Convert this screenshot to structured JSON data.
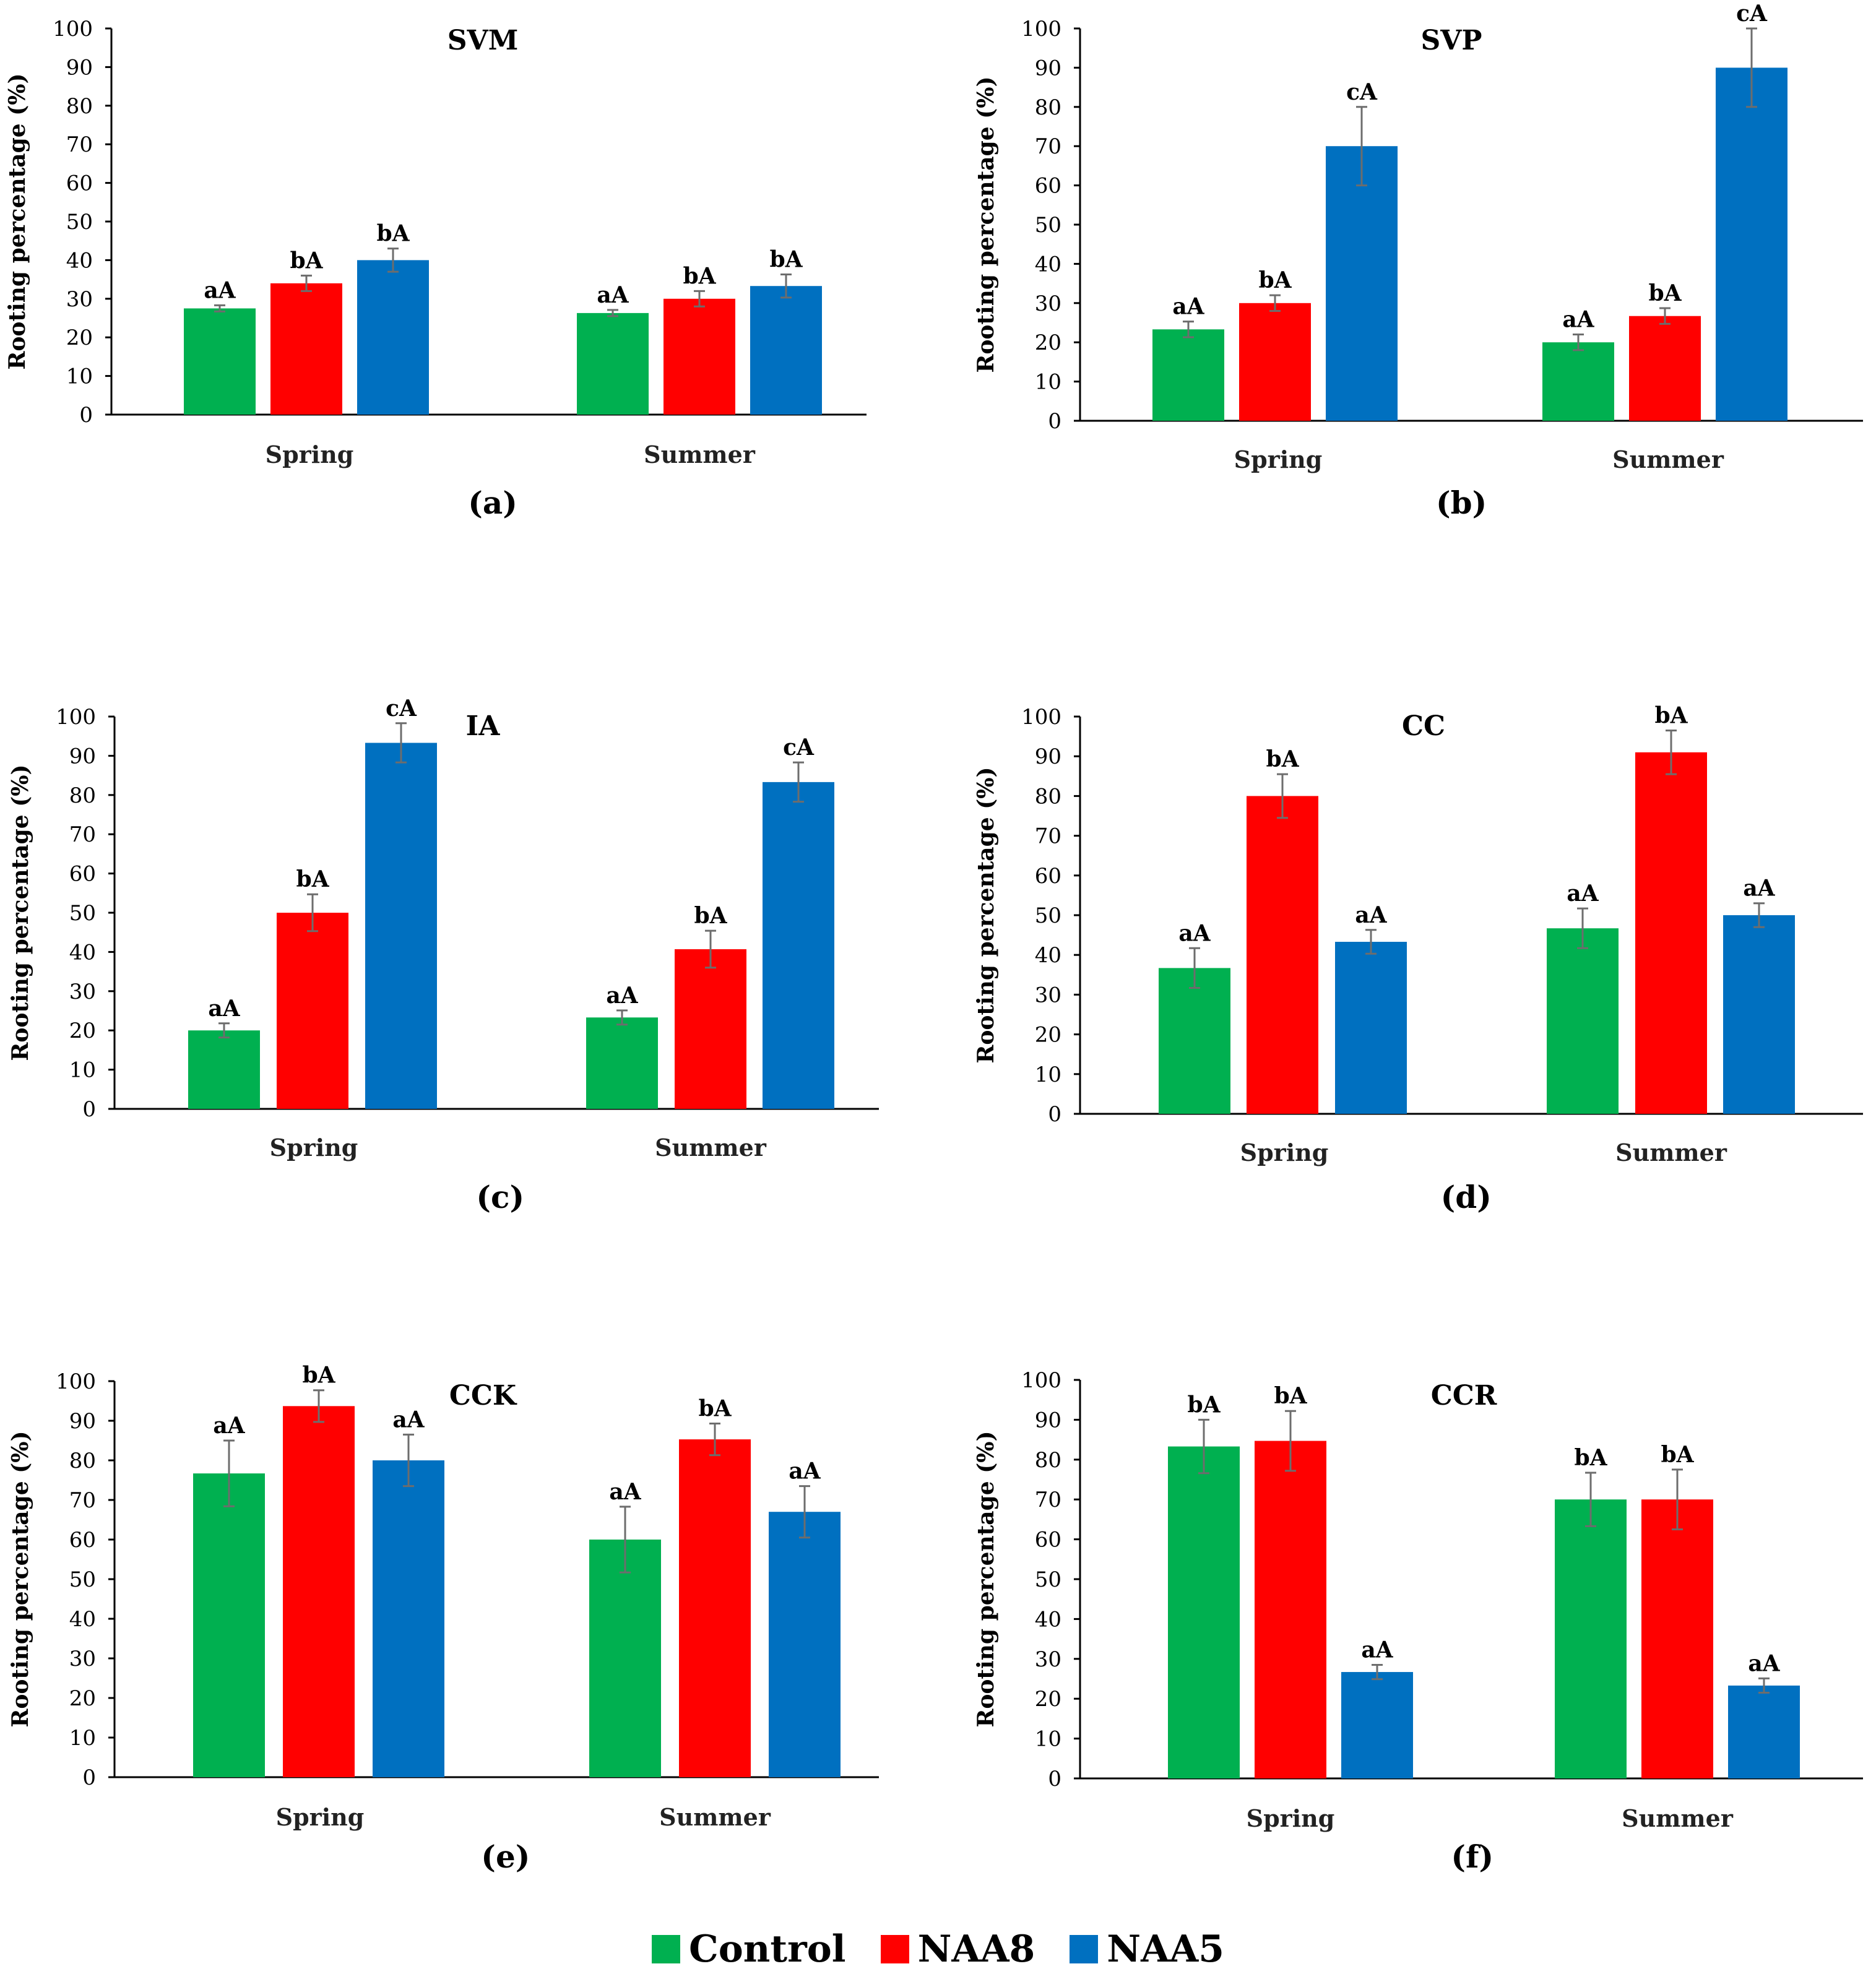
{
  "colors": {
    "Control": "#00B050",
    "NAA8": "#FF0000",
    "NAA5": "#0070C0",
    "errorbar": "#6d6d6d",
    "axis": "#000000"
  },
  "legend": [
    {
      "name": "Control",
      "color": "#00B050"
    },
    {
      "name": "NAA8",
      "color": "#FF0000"
    },
    {
      "name": "NAA5",
      "color": "#0070C0"
    }
  ],
  "chart_data": [
    {
      "type": "bar",
      "panel": "(a)",
      "title": "SVM",
      "ylabel": "Rooting percentage (%)",
      "ylim": [
        0,
        100
      ],
      "yticks": [
        0,
        10,
        20,
        30,
        40,
        50,
        60,
        70,
        80,
        90,
        100
      ],
      "categories": [
        "Spring",
        "Summer"
      ],
      "series": [
        {
          "name": "Control",
          "values": [
            27.5,
            26.3
          ],
          "errors": [
            0.8,
            0.8
          ],
          "letters": [
            "aA",
            "aA"
          ]
        },
        {
          "name": "NAA8",
          "values": [
            34,
            30
          ],
          "errors": [
            2,
            2
          ],
          "letters": [
            "bA",
            "bA"
          ]
        },
        {
          "name": "NAA5",
          "values": [
            40,
            33.3
          ],
          "errors": [
            3,
            3
          ],
          "letters": [
            "bA",
            "bA"
          ]
        }
      ]
    },
    {
      "type": "bar",
      "panel": "(b)",
      "title": "SVP",
      "ylabel": "Rooting percentage (%)",
      "ylim": [
        0,
        100
      ],
      "yticks": [
        0,
        10,
        20,
        30,
        40,
        50,
        60,
        70,
        80,
        90,
        100
      ],
      "categories": [
        "Spring",
        "Summer"
      ],
      "series": [
        {
          "name": "Control",
          "values": [
            23.3,
            20
          ],
          "errors": [
            2,
            2
          ],
          "letters": [
            "aA",
            "aA"
          ]
        },
        {
          "name": "NAA8",
          "values": [
            30,
            26.7
          ],
          "errors": [
            2,
            2
          ],
          "letters": [
            "bA",
            "bA"
          ]
        },
        {
          "name": "NAA5",
          "values": [
            70,
            90
          ],
          "errors": [
            10,
            10
          ],
          "letters": [
            "cA",
            "cA"
          ]
        }
      ]
    },
    {
      "type": "bar",
      "panel": "(c)",
      "title": "IA",
      "ylabel": "Rooting percentage (%)",
      "ylim": [
        0,
        100
      ],
      "yticks": [
        0,
        10,
        20,
        30,
        40,
        50,
        60,
        70,
        80,
        90,
        100
      ],
      "categories": [
        "Spring",
        "Summer"
      ],
      "series": [
        {
          "name": "Control",
          "values": [
            20,
            23.3
          ],
          "errors": [
            1.8,
            1.8
          ],
          "letters": [
            "aA",
            "aA"
          ]
        },
        {
          "name": "NAA8",
          "values": [
            50,
            40.7
          ],
          "errors": [
            4.7,
            4.7
          ],
          "letters": [
            "bA",
            "bA"
          ]
        },
        {
          "name": "NAA5",
          "values": [
            93.3,
            83.3
          ],
          "errors": [
            5,
            5
          ],
          "letters": [
            "cA",
            "cA"
          ]
        }
      ]
    },
    {
      "type": "bar",
      "panel": "(d)",
      "title": "CC",
      "ylabel": "Rooting percentage (%)",
      "ylim": [
        0,
        100
      ],
      "yticks": [
        0,
        10,
        20,
        30,
        40,
        50,
        60,
        70,
        80,
        90,
        100
      ],
      "categories": [
        "Spring",
        "Summer"
      ],
      "series": [
        {
          "name": "Control",
          "values": [
            36.7,
            46.7
          ],
          "errors": [
            5,
            5
          ],
          "letters": [
            "aA",
            "aA"
          ]
        },
        {
          "name": "NAA8",
          "values": [
            80,
            91
          ],
          "errors": [
            5.5,
            5.5
          ],
          "letters": [
            "bA",
            "bA"
          ]
        },
        {
          "name": "NAA5",
          "values": [
            43.3,
            50
          ],
          "errors": [
            3,
            3
          ],
          "letters": [
            "aA",
            "aA"
          ]
        }
      ]
    },
    {
      "type": "bar",
      "panel": "(e)",
      "title": "CCK",
      "ylabel": "Rooting percentage (%)",
      "ylim": [
        0,
        100
      ],
      "yticks": [
        0,
        10,
        20,
        30,
        40,
        50,
        60,
        70,
        80,
        90,
        100
      ],
      "categories": [
        "Spring",
        "Summer"
      ],
      "series": [
        {
          "name": "Control",
          "values": [
            76.7,
            60
          ],
          "errors": [
            8.3,
            8.3
          ],
          "letters": [
            "aA",
            "aA"
          ]
        },
        {
          "name": "NAA8",
          "values": [
            93.7,
            85.3
          ],
          "errors": [
            4,
            4
          ],
          "letters": [
            "bA",
            "bA"
          ]
        },
        {
          "name": "NAA5",
          "values": [
            80,
            67
          ],
          "errors": [
            6.5,
            6.5
          ],
          "letters": [
            "aA",
            "aA"
          ]
        }
      ]
    },
    {
      "type": "bar",
      "panel": "(f)",
      "title": "CCR",
      "ylabel": "Rooting percentage (%)",
      "ylim": [
        0,
        100
      ],
      "yticks": [
        0,
        10,
        20,
        30,
        40,
        50,
        60,
        70,
        80,
        90,
        100
      ],
      "categories": [
        "Spring",
        "Summer"
      ],
      "series": [
        {
          "name": "Control",
          "values": [
            83.3,
            70
          ],
          "errors": [
            6.7,
            6.7
          ],
          "letters": [
            "bA",
            "bA"
          ]
        },
        {
          "name": "NAA8",
          "values": [
            84.7,
            70
          ],
          "errors": [
            7.5,
            7.5
          ],
          "letters": [
            "bA",
            "bA"
          ]
        },
        {
          "name": "NAA5",
          "values": [
            26.7,
            23.3
          ],
          "errors": [
            1.8,
            1.8
          ],
          "letters": [
            "aA",
            "aA"
          ]
        }
      ]
    }
  ]
}
